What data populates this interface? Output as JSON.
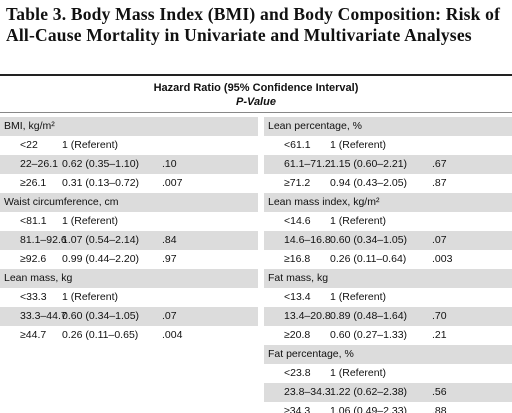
{
  "title": "Table 3. Body Mass Index (BMI) and Body Composition: Risk of All-Cause Mortality in Univariate and Multivariate Analyses",
  "header": {
    "line1": "Hazard Ratio (95% Confidence Interval)",
    "line2": "P-Value"
  },
  "columns": [
    [
      {
        "heading": "BMI, kg/m²",
        "rows": [
          {
            "range": "<22",
            "hr": "1 (Referent)"
          },
          {
            "range": "22–26.1",
            "hr": "0.62 (0.35–1.10)",
            "p": ".10"
          },
          {
            "range": "≥26.1",
            "hr": "0.31 (0.13–0.72)",
            "p": ".007"
          }
        ]
      },
      {
        "heading": "Waist circumference, cm",
        "rows": [
          {
            "range": "<81.1",
            "hr": "1 (Referent)"
          },
          {
            "range": "81.1–92.6",
            "hr": "1.07 (0.54–2.14)",
            "p": ".84"
          },
          {
            "range": "≥92.6",
            "hr": "0.99 (0.44–2.20)",
            "p": ".97"
          }
        ]
      },
      {
        "heading": "Lean mass, kg",
        "rows": [
          {
            "range": "<33.3",
            "hr": "1 (Referent)"
          },
          {
            "range": "33.3–44.7",
            "hr": "0.60 (0.34–1.05)",
            "p": ".07"
          },
          {
            "range": "≥44.7",
            "hr": "0.26 (0.11–0.65)",
            "p": ".004"
          }
        ]
      }
    ],
    [
      {
        "heading": "Lean percentage, %",
        "rows": [
          {
            "range": "<61.1",
            "hr": "1 (Referent)"
          },
          {
            "range": "61.1–71.2",
            "hr": "1.15 (0.60–2.21)",
            "p": ".67"
          },
          {
            "range": "≥71.2",
            "hr": "0.94 (0.43–2.05)",
            "p": ".87"
          }
        ]
      },
      {
        "heading": "Lean mass index, kg/m²",
        "rows": [
          {
            "range": "<14.6",
            "hr": "1 (Referent)"
          },
          {
            "range": "14.6–16.8",
            "hr": "0.60 (0.34–1.05)",
            "p": ".07"
          },
          {
            "range": "≥16.8",
            "hr": "0.26 (0.11–0.64)",
            "p": ".003"
          }
        ]
      },
      {
        "heading": "Fat mass, kg",
        "rows": [
          {
            "range": "<13.4",
            "hr": "1 (Referent)"
          },
          {
            "range": "13.4–20.8",
            "hr": "0.89 (0.48–1.64)",
            "p": ".70"
          },
          {
            "range": "≥20.8",
            "hr": "0.60 (0.27–1.33)",
            "p": ".21"
          }
        ]
      },
      {
        "heading": "Fat percentage, %",
        "rows": [
          {
            "range": "<23.8",
            "hr": "1 (Referent)"
          },
          {
            "range": "23.8–34.3",
            "hr": "1.22 (0.62–2.38)",
            "p": ".56"
          },
          {
            "range": "≥34.3",
            "hr": "1.06 (0.49–2.33)",
            "p": ".88"
          }
        ]
      }
    ]
  ]
}
